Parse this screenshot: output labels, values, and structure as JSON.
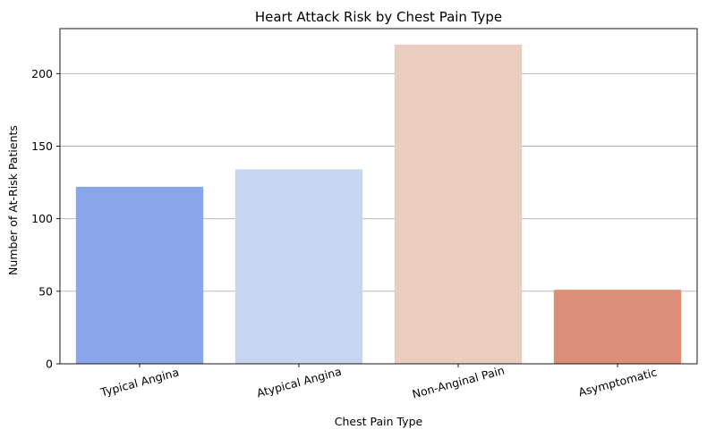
{
  "chart_data": {
    "type": "bar",
    "title": "Heart Attack Risk by Chest Pain Type",
    "xlabel": "Chest Pain Type",
    "ylabel": "Number of At-Risk Patients",
    "categories": [
      "Typical Angina",
      "Atypical Angina",
      "Non-Anginal Pain",
      "Asymptomatic"
    ],
    "values": [
      122,
      134,
      220,
      51
    ],
    "ylim": [
      0,
      231
    ],
    "yticks": [
      0,
      50,
      100,
      150,
      200
    ],
    "grid": "horizontal",
    "x_tick_rotation_deg": 15,
    "colors": [
      "#8aa6ea",
      "#c6d6f0",
      "#e9cdbe",
      "#dd8e78"
    ]
  }
}
